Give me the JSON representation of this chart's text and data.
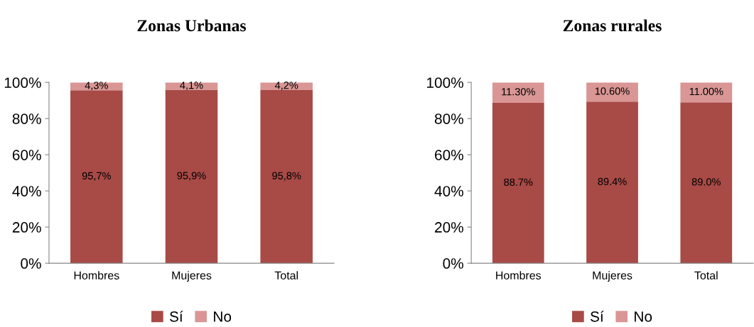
{
  "chart_data": [
    {
      "type": "bar",
      "title": "Zonas Urbanas",
      "categories": [
        "Hombres",
        "Mujeres",
        "Total"
      ],
      "stacked": true,
      "series": [
        {
          "name": "Sí",
          "color": "#a84a46",
          "values": [
            95.7,
            95.9,
            95.8
          ],
          "value_labels": [
            "95,7%",
            "95,9%",
            "95,8%"
          ]
        },
        {
          "name": "No",
          "color": "#d99694",
          "values": [
            4.3,
            4.1,
            4.2
          ],
          "value_labels": [
            "4,3%",
            "4,1%",
            "4,2%"
          ]
        }
      ],
      "ylim": [
        0,
        100
      ],
      "yticks": [
        {
          "value": 0,
          "label": "0%"
        },
        {
          "value": 20,
          "label": "20%"
        },
        {
          "value": 40,
          "label": "40%"
        },
        {
          "value": 60,
          "label": "60%"
        },
        {
          "value": 80,
          "label": "80%"
        },
        {
          "value": 100,
          "label": "100%"
        }
      ],
      "grid": false,
      "legend": "bottom"
    },
    {
      "type": "bar",
      "title": "Zonas rurales",
      "categories": [
        "Hombres",
        "Mujeres",
        "Total"
      ],
      "stacked": true,
      "series": [
        {
          "name": "Sí",
          "color": "#a84a46",
          "values": [
            88.7,
            89.4,
            89.0
          ],
          "value_labels": [
            "88.7%",
            "89.4%",
            "89.0%"
          ]
        },
        {
          "name": "No",
          "color": "#d99694",
          "values": [
            11.3,
            10.6,
            11.0
          ],
          "value_labels": [
            "11.30%",
            "10.60%",
            "11.00%"
          ]
        }
      ],
      "ylim": [
        0,
        100
      ],
      "yticks": [
        {
          "value": 0,
          "label": "0%"
        },
        {
          "value": 20,
          "label": "20%"
        },
        {
          "value": 40,
          "label": "40%"
        },
        {
          "value": 60,
          "label": "60%"
        },
        {
          "value": 80,
          "label": "80%"
        },
        {
          "value": 100,
          "label": "100%"
        }
      ],
      "grid": false,
      "legend": "bottom"
    }
  ]
}
